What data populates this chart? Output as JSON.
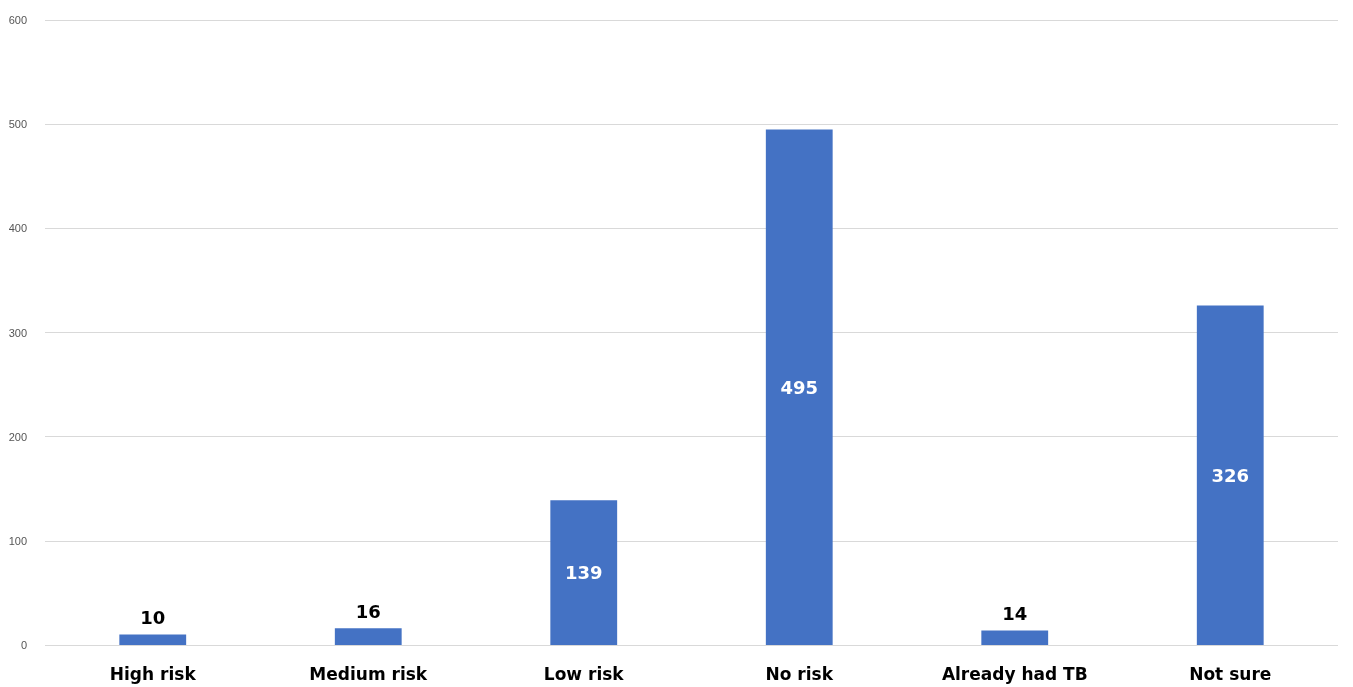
{
  "chart_data": {
    "type": "bar",
    "categories": [
      "High risk",
      "Medium risk",
      "Low risk",
      "No risk",
      "Already had TB",
      "Not sure"
    ],
    "values": [
      10,
      16,
      139,
      495,
      14,
      326
    ],
    "color": "#4472c4",
    "ylim": [
      0,
      600
    ],
    "yticks": [
      0,
      100,
      200,
      300,
      400,
      500,
      600
    ],
    "grid": "y",
    "data_labels": true
  }
}
